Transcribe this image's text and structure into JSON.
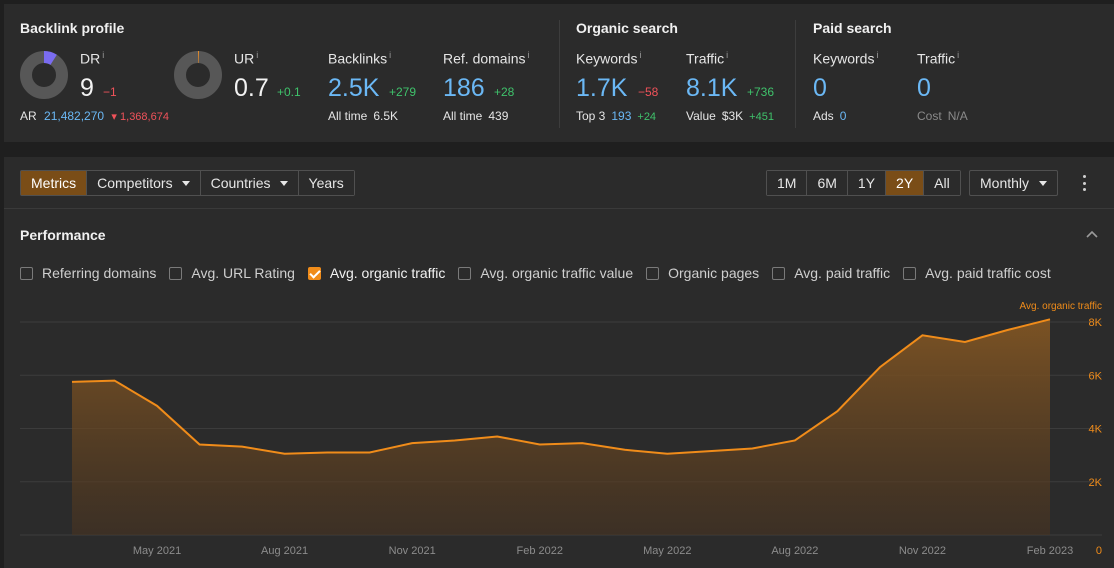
{
  "backlink_profile": {
    "title": "Backlink profile",
    "dr": {
      "label": "DR",
      "info": "i",
      "value": "9",
      "delta": "−1",
      "donut_fraction": 0.09
    },
    "ur": {
      "label": "UR",
      "info": "i",
      "value": "0.7",
      "delta": "+0.1",
      "donut_fraction": 0.007
    },
    "ar": {
      "label": "AR",
      "value": "21,482,270",
      "delta": "1,368,674"
    },
    "backlinks": {
      "label": "Backlinks",
      "info": "i",
      "value": "2.5K",
      "delta": "+279",
      "sub_label": "All time",
      "sub_value": "6.5K"
    },
    "ref_domains": {
      "label": "Ref. domains",
      "info": "i",
      "value": "186",
      "delta": "+28",
      "sub_label": "All time",
      "sub_value": "439"
    }
  },
  "organic_search": {
    "title": "Organic search",
    "keywords": {
      "label": "Keywords",
      "info": "i",
      "value": "1.7K",
      "delta": "−58",
      "sub_label": "Top 3",
      "sub_value": "193",
      "sub_delta": "+24"
    },
    "traffic": {
      "label": "Traffic",
      "info": "i",
      "value": "8.1K",
      "delta": "+736",
      "sub_label": "Value",
      "sub_value": "$3K",
      "sub_delta": "+451"
    }
  },
  "paid_search": {
    "title": "Paid search",
    "keywords": {
      "label": "Keywords",
      "info": "i",
      "value": "0",
      "sub_label": "Ads",
      "sub_value": "0"
    },
    "traffic": {
      "label": "Traffic",
      "info": "i",
      "value": "0",
      "sub_label": "Cost",
      "sub_value": "N/A"
    }
  },
  "toolbar": {
    "tabs": [
      "Metrics",
      "Competitors",
      "Countries",
      "Years"
    ],
    "active_tab": "Metrics",
    "ranges": [
      "1M",
      "6M",
      "1Y",
      "2Y",
      "All"
    ],
    "active_range": "2Y",
    "interval": "Monthly"
  },
  "performance": {
    "title": "Performance",
    "checkboxes": [
      {
        "label": "Referring domains",
        "checked": false
      },
      {
        "label": "Avg. URL Rating",
        "checked": false
      },
      {
        "label": "Avg. organic traffic",
        "checked": true
      },
      {
        "label": "Avg. organic traffic value",
        "checked": false
      },
      {
        "label": "Organic pages",
        "checked": false
      },
      {
        "label": "Avg. paid traffic",
        "checked": false
      },
      {
        "label": "Avg. paid traffic cost",
        "checked": false
      }
    ]
  },
  "colors": {
    "accent": "#f08c1a",
    "positive": "#3fc26b",
    "negative": "#f0525a",
    "link_blue": "#6bb8f5"
  },
  "chart_data": {
    "type": "area",
    "series": [
      {
        "name": "Avg. organic traffic",
        "x": [
          "Mar 2021",
          "Apr 2021",
          "May 2021",
          "Jun 2021",
          "Jul 2021",
          "Aug 2021",
          "Sep 2021",
          "Oct 2021",
          "Nov 2021",
          "Dec 2021",
          "Jan 2022",
          "Feb 2022",
          "Mar 2022",
          "Apr 2022",
          "May 2022",
          "Jun 2022",
          "Jul 2022",
          "Aug 2022",
          "Sep 2022",
          "Oct 2022",
          "Nov 2022",
          "Dec 2022",
          "Jan 2023",
          "Feb 2023"
        ],
        "values": [
          5750,
          5800,
          4850,
          3400,
          3320,
          3050,
          3100,
          3100,
          3450,
          3550,
          3700,
          3400,
          3450,
          3200,
          3050,
          3150,
          3250,
          3550,
          4650,
          6300,
          7500,
          7250,
          7700,
          8100
        ]
      }
    ],
    "x_ticks": [
      "May 2021",
      "Aug 2021",
      "Nov 2021",
      "Feb 2022",
      "May 2022",
      "Aug 2022",
      "Nov 2022",
      "Feb 2023"
    ],
    "y_ticks": [
      "0",
      "2K",
      "4K",
      "6K",
      "8K"
    ],
    "ylim": [
      0,
      8000
    ],
    "grid": true,
    "legend": "top-right"
  }
}
